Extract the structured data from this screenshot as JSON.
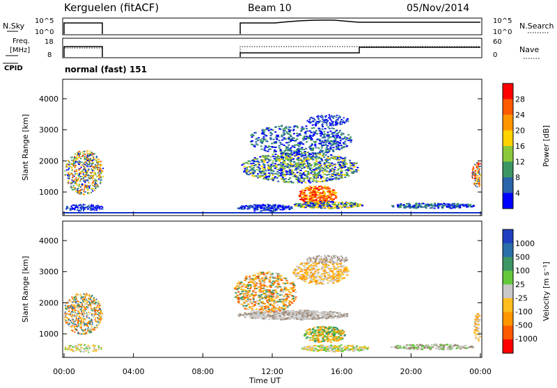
{
  "header": {
    "station": "Kerguelen (fitACF)",
    "beam": "Beam 10",
    "date": "05/Nov/2014"
  },
  "panels": {
    "nsky": {
      "label": "N.Sky",
      "ticks": [
        "10^5",
        "10^0"
      ],
      "right_ticks": [
        "10^5",
        "10^0"
      ],
      "right_label": "N.Search"
    },
    "freq": {
      "label": "Freq.",
      "unit": "[MHz]",
      "ticks": [
        "18",
        "8"
      ],
      "right_ticks": [
        "60",
        "0"
      ],
      "right_label": "Nave"
    },
    "cpid": {
      "label": "CPID",
      "text": "normal (fast) 151"
    }
  },
  "chart_data": [
    {
      "type": "heatmap",
      "name": "power",
      "ylabel": "Slant Range [km]",
      "yticks": [
        "4000",
        "3000",
        "2000",
        "1000"
      ],
      "xticks": [
        "00:00",
        "04:00",
        "08:00",
        "12:00",
        "16:00",
        "20:00",
        "00:00"
      ],
      "colorbar": {
        "label": "Power [dB]",
        "ticks": [
          "28",
          "24",
          "20",
          "16",
          "12",
          "8",
          "4"
        ],
        "colors": [
          "#ff0000",
          "#ff5a00",
          "#ff9600",
          "#ffd200",
          "#8cc83c",
          "#3c9664",
          "#2a64aa",
          "#0000ff"
        ]
      }
    },
    {
      "type": "heatmap",
      "name": "velocity",
      "ylabel": "Slant Range [km]",
      "yticks": [
        "4000",
        "3000",
        "2000",
        "1000"
      ],
      "xticks": [
        "00:00",
        "04:00",
        "08:00",
        "12:00",
        "16:00",
        "20:00",
        "00:00"
      ],
      "xlabel": "Time UT",
      "colorbar": {
        "label": "Velocity [m s⁻¹]",
        "ticks": [
          "1000",
          "500",
          "100",
          "25",
          "-25",
          "-100",
          "-500",
          "-1000"
        ],
        "colors": [
          "#2040c0",
          "#2a6eaa",
          "#3c9664",
          "#64c83c",
          "#c8c8c8",
          "#ffbe1e",
          "#ff9600",
          "#ff5a00",
          "#ff0000"
        ]
      }
    }
  ]
}
